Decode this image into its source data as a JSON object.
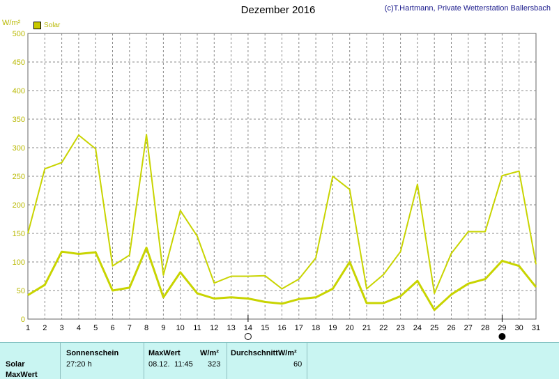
{
  "chart_data": {
    "type": "line",
    "title": "Dezember 2016",
    "credit": "(c)T.Hartmann, Private Wetterstation Ballersbach",
    "ylabel": "W/m²",
    "ylim": [
      0,
      500
    ],
    "yticks": [
      0,
      50,
      100,
      150,
      200,
      250,
      300,
      350,
      400,
      450,
      500
    ],
    "x": [
      1,
      2,
      3,
      4,
      5,
      6,
      7,
      8,
      9,
      10,
      11,
      12,
      13,
      14,
      15,
      16,
      17,
      18,
      19,
      20,
      21,
      22,
      23,
      24,
      25,
      26,
      27,
      28,
      29,
      30,
      31
    ],
    "legend": [
      "Solar"
    ],
    "series": [
      {
        "name": "Solar",
        "role": "max",
        "values": [
          150,
          263,
          274,
          322,
          298,
          93,
          112,
          323,
          77,
          190,
          145,
          63,
          75,
          75,
          76,
          53,
          70,
          107,
          250,
          227,
          53,
          78,
          118,
          236,
          45,
          115,
          153,
          153,
          251,
          259,
          96
        ]
      },
      {
        "name": "Solar",
        "role": "mean",
        "values": [
          42,
          60,
          118,
          114,
          117,
          50,
          55,
          125,
          38,
          82,
          45,
          36,
          38,
          36,
          30,
          27,
          35,
          38,
          53,
          100,
          28,
          28,
          40,
          67,
          16,
          43,
          62,
          70,
          102,
          93,
          56
        ]
      }
    ],
    "colors": {
      "line": "#c8d400",
      "grid": "#888888",
      "axis_text": "#b8b800"
    },
    "moon_markers": [
      {
        "day": 14,
        "phase": "full"
      },
      {
        "day": 29,
        "phase": "new"
      }
    ]
  },
  "table": {
    "headers": {
      "sunshine": "Sonnenschein",
      "maxwert": "MaxWert",
      "maxwert_unit": "W/m²",
      "avg": "DurchschnittW/m²"
    },
    "rows": [
      {
        "label": "Solar",
        "sunshine": "27:20 h",
        "max_date": "08.12.",
        "max_time": "11:45",
        "max_value": "323",
        "avg": "60"
      },
      {
        "label": "MaxWert"
      }
    ]
  }
}
